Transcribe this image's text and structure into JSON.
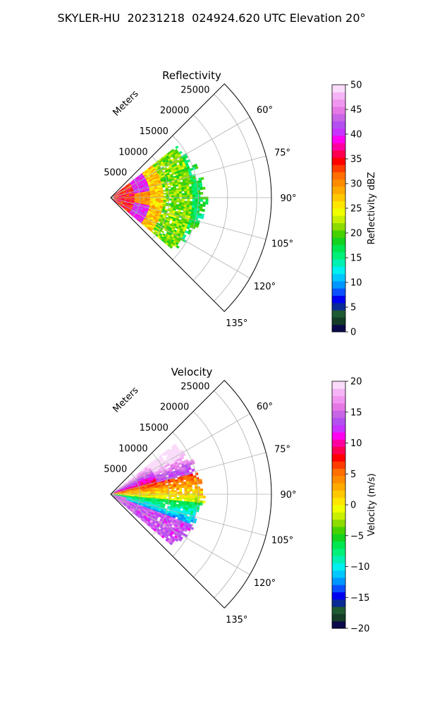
{
  "title": "SKYLER-HU  20231218  024924.620 UTC Elevation 20°",
  "chart_data": [
    {
      "type": "heatmap",
      "title": "Reflectivity",
      "range_label": "Meters",
      "range_ticks": [
        5000,
        10000,
        15000,
        20000,
        25000
      ],
      "range_tick_labels": [
        "5000",
        "10000",
        "15000",
        "20000",
        "25000"
      ],
      "range_max": 27500,
      "azimuth_range": [
        45,
        135
      ],
      "azimuth_ticks": [
        60,
        75,
        90,
        105,
        120,
        135
      ],
      "azimuth_tick_labels": [
        "60°",
        "75°",
        "90°",
        "105°",
        "120°",
        "135°"
      ],
      "colorbar": {
        "label": "Reflectivity dBZ",
        "range": [
          0,
          50
        ],
        "ticks": [
          0,
          5,
          10,
          15,
          20,
          25,
          30,
          35,
          40,
          45,
          50
        ],
        "tick_labels": [
          "0",
          "5",
          "10",
          "15",
          "20",
          "25",
          "30",
          "35",
          "40",
          "45",
          "50"
        ],
        "colors": [
          "#0a0a4a",
          "#143c28",
          "#1e5a32",
          "#0a2a96",
          "#0000f0",
          "#0a50ff",
          "#0096ff",
          "#00c8ff",
          "#00f0f0",
          "#00f0b4",
          "#00f078",
          "#00e650",
          "#14d21e",
          "#46d200",
          "#8cdc00",
          "#c8f000",
          "#f0ff00",
          "#ffe600",
          "#ffc800",
          "#ffaa00",
          "#ff8c00",
          "#ff6e00",
          "#ff3c00",
          "#ff0000",
          "#ff0050",
          "#ff00a0",
          "#ff00f0",
          "#c832ff",
          "#b450f0",
          "#c864e6",
          "#e678e6",
          "#f096f0",
          "#f5b4f5",
          "#fadcfa"
        ]
      },
      "grid": true
    },
    {
      "type": "heatmap",
      "title": "Velocity",
      "range_label": "Meters",
      "range_ticks": [
        5000,
        10000,
        15000,
        20000,
        25000
      ],
      "range_tick_labels": [
        "5000",
        "10000",
        "15000",
        "20000",
        "25000"
      ],
      "range_max": 27500,
      "azimuth_range": [
        45,
        135
      ],
      "azimuth_ticks": [
        60,
        75,
        90,
        105,
        120,
        135
      ],
      "azimuth_tick_labels": [
        "60°",
        "75°",
        "90°",
        "105°",
        "120°",
        "135°"
      ],
      "colorbar": {
        "label": "Velocity (m/s)",
        "range": [
          -20,
          20
        ],
        "ticks": [
          -20,
          -15,
          -10,
          -5,
          0,
          5,
          10,
          15,
          20
        ],
        "tick_labels": [
          "−20",
          "−15",
          "−10",
          "−5",
          "0",
          "5",
          "10",
          "15",
          "20"
        ],
        "colors": [
          "#0a0a4a",
          "#143c28",
          "#1e5a32",
          "#0a2a96",
          "#0000f0",
          "#0a50ff",
          "#0096ff",
          "#00c8ff",
          "#00f0f0",
          "#00f0b4",
          "#00f078",
          "#00e650",
          "#14d21e",
          "#46d200",
          "#8cdc00",
          "#c8f000",
          "#f0ff00",
          "#ffe600",
          "#ffc800",
          "#ffaa00",
          "#ff8c00",
          "#ff6e00",
          "#ff3c00",
          "#ff0000",
          "#ff0050",
          "#ff00a0",
          "#ff00f0",
          "#c832ff",
          "#b450f0",
          "#c864e6",
          "#e678e6",
          "#f096f0",
          "#f5b4f5",
          "#fadcfa"
        ]
      },
      "grid": true
    }
  ]
}
